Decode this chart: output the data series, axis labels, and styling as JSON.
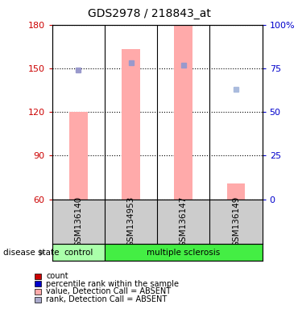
{
  "title": "GDS2978 / 218843_at",
  "samples": [
    "GSM136140",
    "GSM134953",
    "GSM136147",
    "GSM136149"
  ],
  "groups": [
    "control",
    "multiple sclerosis",
    "multiple sclerosis",
    "multiple sclerosis"
  ],
  "ylim_left": [
    60,
    180
  ],
  "ylim_right": [
    0,
    100
  ],
  "yticks_left": [
    60,
    90,
    120,
    150,
    180
  ],
  "yticks_right": [
    0,
    25,
    50,
    75,
    100
  ],
  "bar_values": [
    120,
    163,
    180,
    71
  ],
  "rank_dots": [
    74,
    78,
    77,
    63
  ],
  "rank_dot_colors": [
    "#9999cc",
    "#9999cc",
    "#9999cc",
    "#aabbdd"
  ],
  "bar_color_absent": "#ffaaaa",
  "dot_color_absent": "#aaaacc",
  "legend_items": [
    {
      "color": "#cc0000",
      "label": "count"
    },
    {
      "color": "#0000cc",
      "label": "percentile rank within the sample"
    },
    {
      "color": "#ffaaaa",
      "label": "value, Detection Call = ABSENT"
    },
    {
      "color": "#aaaacc",
      "label": "rank, Detection Call = ABSENT"
    }
  ],
  "bg_color": "#ffffff",
  "left_label_color": "#cc0000",
  "right_label_color": "#0000cc",
  "control_color": "#aaffaa",
  "ms_color": "#44ee44",
  "label_area_color": "#cccccc",
  "bar_width": 0.35
}
